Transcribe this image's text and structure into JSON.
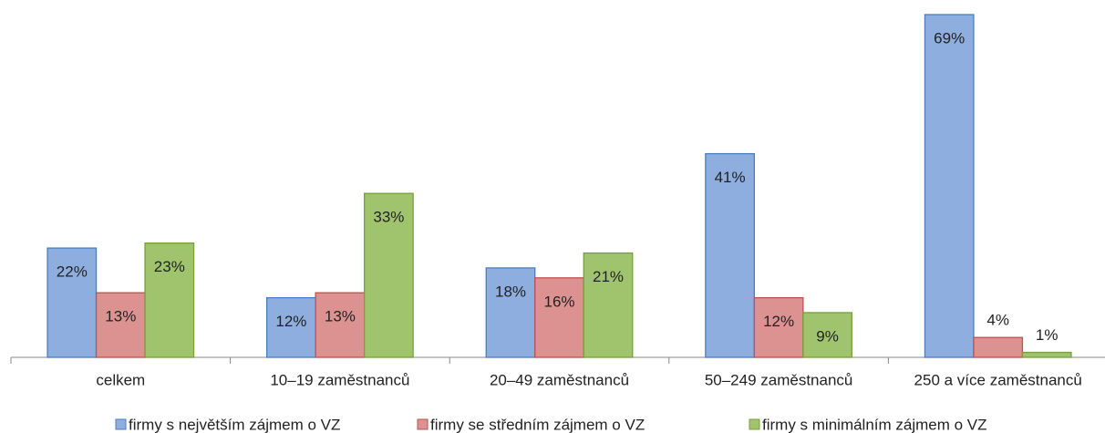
{
  "chart_data": {
    "type": "bar",
    "categories": [
      "celkem",
      "10–19 zaměstnanců",
      "20–49 zaměstnanců",
      "50–249 zaměstnanců",
      "250 a více zaměstnanců"
    ],
    "series": [
      {
        "name": "firmy s největším zájmem o VZ",
        "color": "#8eaedf",
        "stroke": "#4a7ec0",
        "values": [
          22,
          12,
          18,
          41,
          69
        ],
        "value_labels": [
          "22%",
          "12%",
          "18%",
          "41%",
          "69%"
        ]
      },
      {
        "name": "firmy se středním zájmem o VZ",
        "color": "#dc9291",
        "stroke": "#c0504d",
        "values": [
          13,
          13,
          16,
          12,
          4
        ],
        "value_labels": [
          "13%",
          "13%",
          "16%",
          "12%",
          "4%"
        ]
      },
      {
        "name": "firmy s minimálním zájmem o VZ",
        "color": "#9fc46d",
        "stroke": "#77a03a",
        "values": [
          23,
          33,
          21,
          9,
          1
        ],
        "value_labels": [
          "23%",
          "33%",
          "21%",
          "9%",
          "1%"
        ]
      }
    ]
  }
}
